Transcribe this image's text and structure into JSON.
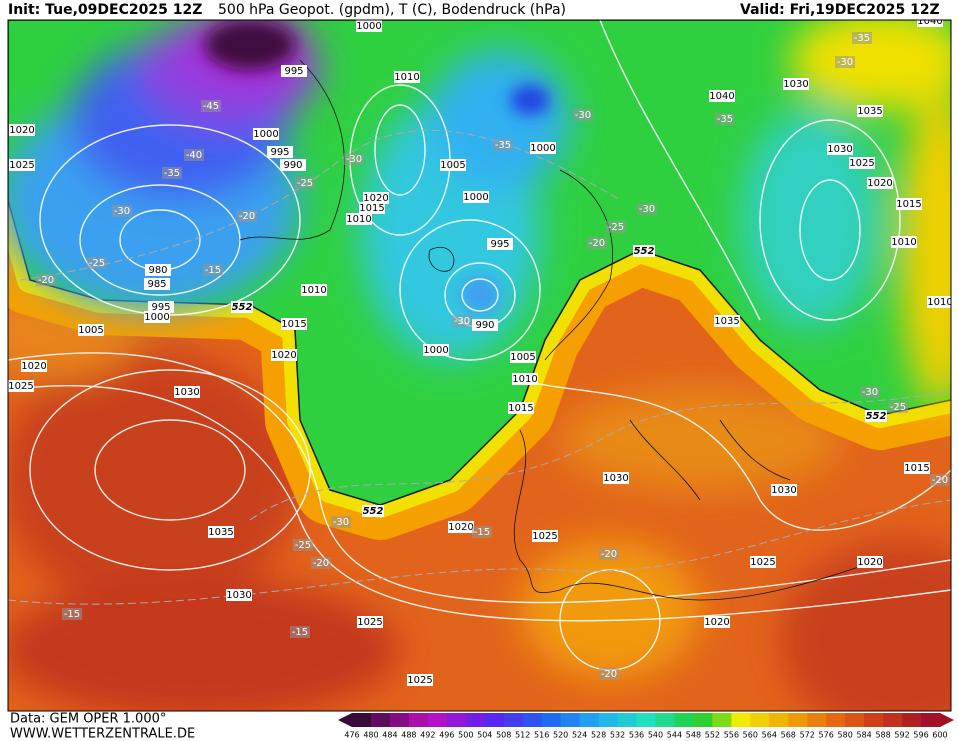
{
  "header": {
    "init": "Init: Tue,09DEC2025 12Z",
    "title": "500 hPa Geopot. (gpdm), T (C), Bodendruck (hPa)",
    "valid": "Valid: Fri,19DEC2025 12Z"
  },
  "footer": {
    "data": "Data: GEM OPER 1.000°",
    "site": "WWW.WETTERZENTRALE.DE"
  },
  "scale": {
    "values": [
      476,
      480,
      484,
      488,
      492,
      496,
      500,
      504,
      508,
      512,
      516,
      520,
      524,
      528,
      532,
      536,
      540,
      544,
      548,
      552,
      556,
      560,
      564,
      568,
      572,
      576,
      580,
      584,
      588,
      592,
      596,
      600
    ]
  },
  "map": {
    "pressure_labels": [
      "1040",
      "1000",
      "995",
      "1010",
      "1040",
      "1030",
      "1020",
      "1000",
      "995",
      "990",
      "1005",
      "1000",
      "1025",
      "1035",
      "1030",
      "1025",
      "1020",
      "1020",
      "1015",
      "1010",
      "1000",
      "1015",
      "1010",
      "995",
      "980",
      "985",
      "995",
      "1000",
      "1010",
      "1015",
      "990",
      "1010",
      "1005",
      "1035",
      "1000",
      "1005",
      "1020",
      "1020",
      "1010",
      "1025",
      "1030",
      "1015",
      "1015",
      "1030",
      "1030",
      "1020",
      "1035",
      "1025",
      "1025",
      "1020",
      "1030",
      "1025",
      "1020",
      "1025"
    ],
    "temperature_labels": [
      "-35",
      "-30",
      "-45",
      "-35",
      "-30",
      "-40",
      "-35",
      "-35",
      "-30",
      "-25",
      "-30",
      "-20",
      "-25",
      "-30",
      "-20",
      "-25",
      "-15",
      "-20",
      "-30",
      "-30",
      "-25",
      "-30",
      "-25",
      "-20",
      "-15",
      "-20",
      "-15",
      "-15",
      "-20",
      "-20"
    ],
    "geopotential_labels": [
      "552",
      "552",
      "552",
      "552"
    ]
  }
}
